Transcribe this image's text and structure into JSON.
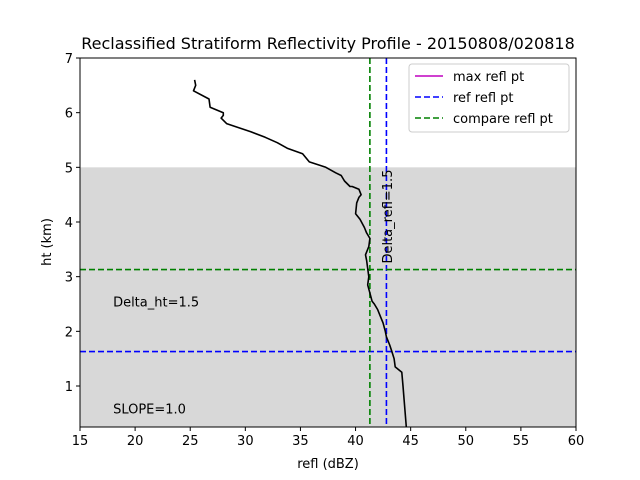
{
  "chart_data": {
    "type": "line",
    "title": "Reclassified Stratiform Reflectivity Profile - 20150808/020818",
    "xlabel": "refl (dBZ)",
    "ylabel": "ht (km)",
    "xlim": [
      15,
      60
    ],
    "ylim": [
      0.25,
      7
    ],
    "xticks": [
      "15",
      "20",
      "25",
      "30",
      "35",
      "40",
      "45",
      "50",
      "55",
      "60"
    ],
    "yticks": [
      "1",
      "2",
      "3",
      "4",
      "5",
      "6",
      "7"
    ],
    "shaded_region": {
      "y_from": 0.25,
      "y_to": 5.0,
      "color": "#d8d8d8"
    },
    "profile": {
      "color": "#000000",
      "x": [
        44.6,
        44.5,
        44.4,
        44.3,
        44.2,
        43.6,
        43.5,
        43.3,
        43.1,
        42.8,
        42.7,
        42.5,
        42.2,
        42.0,
        41.7,
        41.5,
        41.3,
        41.1,
        41.2,
        41.1,
        41.0,
        40.9,
        41.2,
        41.3,
        41.0,
        40.8,
        40.4,
        40.0,
        40.1,
        40.3,
        40.5,
        40.3,
        39.7,
        39.5,
        39.0,
        38.7,
        38.2,
        37.3,
        35.8,
        35.2,
        33.8,
        32.9,
        31.8,
        30.5,
        28.3,
        27.8,
        28.0,
        28.0,
        26.8,
        26.7,
        25.3,
        25.5,
        25.4
      ],
      "y": [
        0.25,
        0.5,
        0.75,
        1.0,
        1.25,
        1.35,
        1.5,
        1.63,
        1.75,
        1.9,
        2.0,
        2.15,
        2.3,
        2.4,
        2.5,
        2.55,
        2.7,
        2.85,
        3.0,
        3.15,
        3.3,
        3.4,
        3.55,
        3.7,
        3.8,
        3.9,
        4.05,
        4.15,
        4.35,
        4.45,
        4.5,
        4.6,
        4.65,
        4.65,
        4.75,
        4.85,
        4.9,
        5.0,
        5.1,
        5.25,
        5.35,
        5.45,
        5.55,
        5.65,
        5.8,
        5.9,
        5.95,
        6.0,
        6.1,
        6.25,
        6.4,
        6.5,
        6.6
      ]
    },
    "reference_lines": [
      {
        "name": "ref refl pt",
        "orientation": "vertical",
        "value": 42.8,
        "color": "#0000ff"
      },
      {
        "name": "ref refl pt",
        "orientation": "horizontal",
        "value": 1.63,
        "color": "#0000ff"
      },
      {
        "name": "compare refl pt",
        "orientation": "vertical",
        "value": 41.3,
        "color": "#008000"
      },
      {
        "name": "compare refl pt",
        "orientation": "horizontal",
        "value": 3.13,
        "color": "#008000"
      }
    ],
    "legend": {
      "placement": "top-right",
      "entries": [
        {
          "label": "max refl pt",
          "color": "#bf00bf",
          "style": "solid"
        },
        {
          "label": "ref refl pt",
          "color": "#0000ff",
          "style": "dashed"
        },
        {
          "label": "compare refl pt",
          "color": "#008000",
          "style": "dashed"
        }
      ]
    },
    "annotations": [
      {
        "text": "Delta_ht=1.5",
        "x": 18.0,
        "y": 2.45
      },
      {
        "text": "SLOPE=1.0",
        "x": 18.0,
        "y": 0.5
      },
      {
        "text": "Delta_refl=1.5",
        "x": 43.2,
        "y": 4.1,
        "rotated": true
      }
    ]
  }
}
